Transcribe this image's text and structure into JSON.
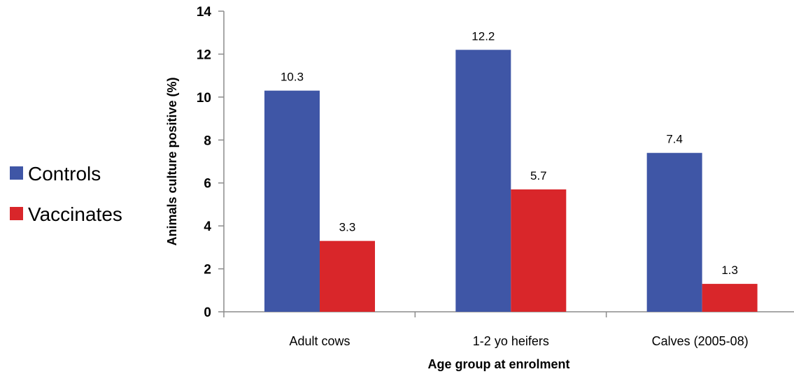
{
  "chart_data": {
    "type": "bar",
    "categories": [
      "Adult cows",
      "1-2 yo heifers",
      "Calves (2005-08)"
    ],
    "series": [
      {
        "name": "Controls",
        "values": [
          10.3,
          12.2,
          7.4
        ],
        "color": "#3f56a6"
      },
      {
        "name": "Vaccinates",
        "values": [
          3.3,
          5.7,
          1.3
        ],
        "color": "#d9262a"
      }
    ],
    "value_labels": [
      [
        "10.3",
        "12.2",
        "7.4"
      ],
      [
        "3.3",
        "5.7",
        "1.3"
      ]
    ],
    "xlabel": "Age group at enrolment",
    "ylabel": "Animals culture positive (%)",
    "ylim": [
      0,
      14
    ],
    "yticks": [
      0,
      2,
      4,
      6,
      8,
      10,
      12,
      14
    ],
    "grid": false,
    "legend_position": "left"
  }
}
